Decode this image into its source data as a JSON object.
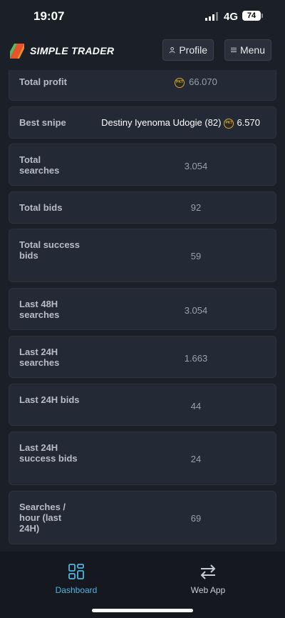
{
  "status": {
    "time": "19:07",
    "network": "4G",
    "battery": "74"
  },
  "header": {
    "brand": "SIMPLE TRADER",
    "profile_label": "Profile",
    "menu_label": "Menu"
  },
  "stats": [
    {
      "label": "Total profit",
      "value": "66.070",
      "coin": true
    },
    {
      "label": "Best snipe",
      "player": "Destiny Iyenoma Udogie (82)",
      "value": "6.570"
    },
    {
      "label": "Total searches",
      "value": "3.054"
    },
    {
      "label": "Total bids",
      "value": "92"
    },
    {
      "label": "Total success bids",
      "value": "59"
    },
    {
      "label": "Last 48H searches",
      "value": "3.054"
    },
    {
      "label": "Last 24H searches",
      "value": "1.663"
    },
    {
      "label": "Last 24H bids",
      "value": "44"
    },
    {
      "label": "Last 24H success bids",
      "value": "24"
    },
    {
      "label": "Searches / hour (last 24H)",
      "value": "69"
    }
  ],
  "coin_text": "PKT",
  "tabs": {
    "dashboard": "Dashboard",
    "webapp": "Web App"
  },
  "colors": {
    "accent": "#4fb3e0",
    "background": "#1a1f28",
    "card": "#232935",
    "coin": "#d4a53a"
  }
}
